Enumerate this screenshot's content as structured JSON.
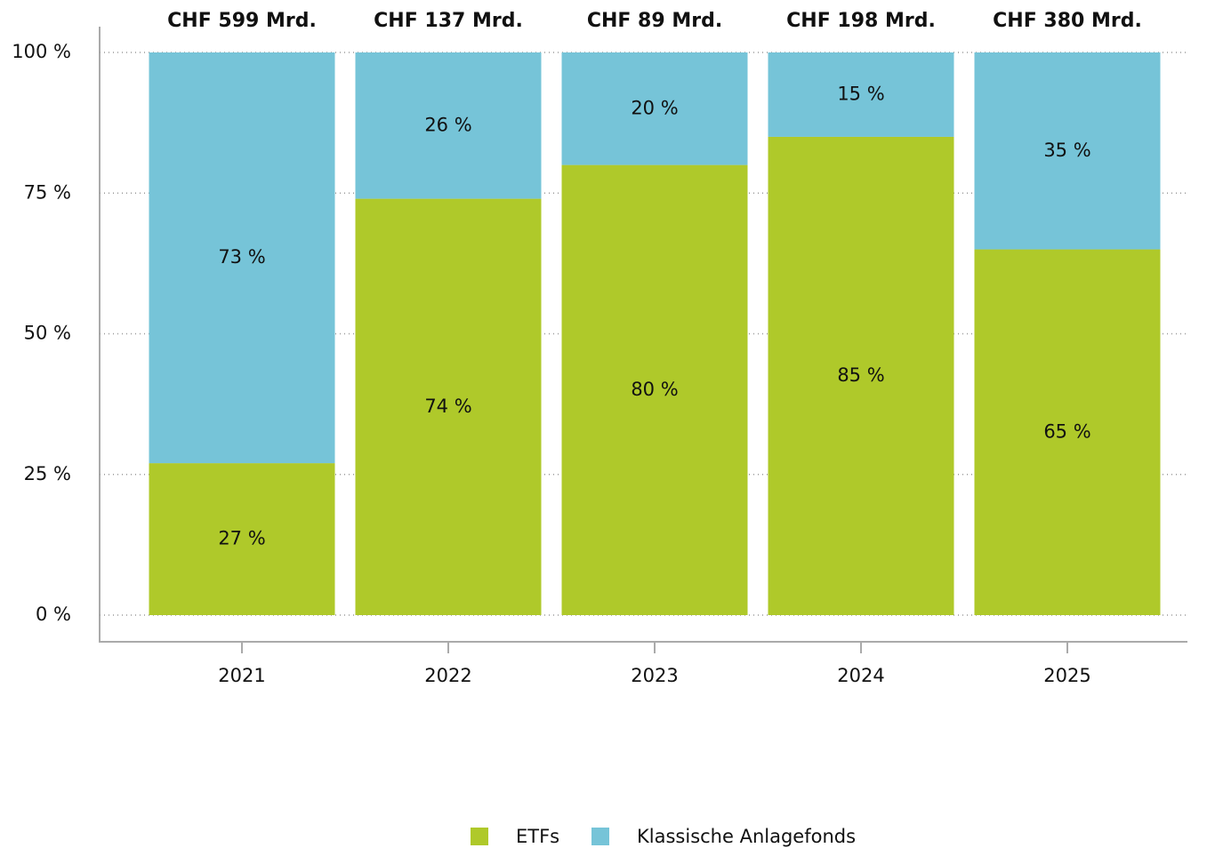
{
  "chart_data": {
    "type": "stacked_bar",
    "categories": [
      "2021",
      "2022",
      "2023",
      "2024",
      "2025"
    ],
    "annotations": [
      "CHF 599 Mrd.",
      "CHF 137 Mrd.",
      "CHF 89 Mrd.",
      "CHF 198 Mrd.",
      "CHF 380 Mrd."
    ],
    "series": [
      {
        "name": "ETFs",
        "color": "#afc92a",
        "values": [
          27,
          74,
          80,
          85,
          65
        ],
        "value_labels": [
          "27 %",
          "74 %",
          "80 %",
          "85 %",
          "65 %"
        ]
      },
      {
        "name": "Klassische Anlagefonds",
        "color": "#76c4d8",
        "values": [
          73,
          26,
          20,
          15,
          35
        ],
        "value_labels": [
          "73 %",
          "26 %",
          "20 %",
          "15 %",
          "35 %"
        ]
      }
    ],
    "ylim": [
      0,
      100
    ],
    "yticks": [
      {
        "value": 0,
        "label": "0 %"
      },
      {
        "value": 25,
        "label": "25 %"
      },
      {
        "value": 50,
        "label": "50 %"
      },
      {
        "value": 75,
        "label": "75 %"
      },
      {
        "value": 100,
        "label": "100 %"
      }
    ],
    "grid": true,
    "legend": "bottom"
  }
}
